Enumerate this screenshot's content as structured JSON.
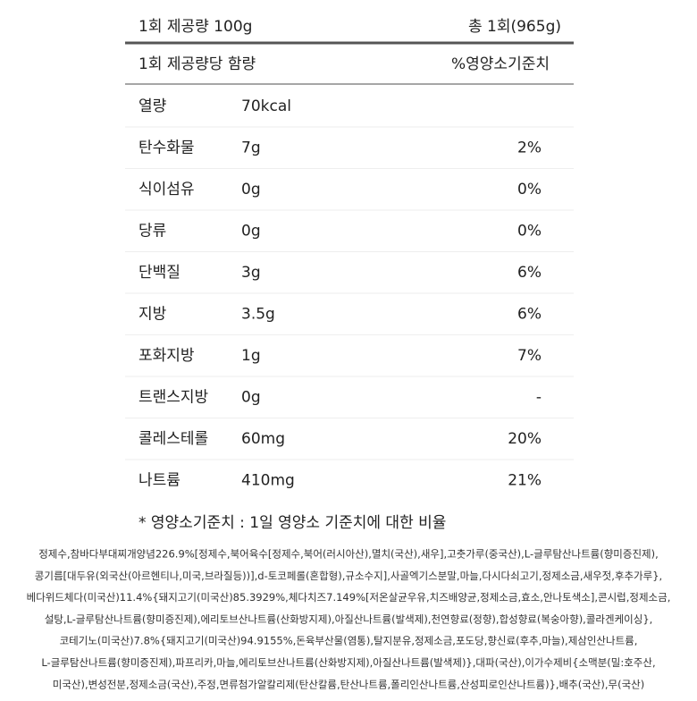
{
  "header": {
    "serving": "1회 제공량 100g",
    "total": "총 1회(965g)",
    "per_serving": "1회 제공량당 함량",
    "dv_label": "%영양소기준치"
  },
  "table": {
    "rows": [
      [
        "열량",
        "70kcal",
        ""
      ],
      [
        "탄수화물",
        "7g",
        "2%"
      ],
      [
        "식이섬유",
        "0g",
        "0%"
      ],
      [
        "당류",
        "0g",
        "0%"
      ],
      [
        "단백질",
        "3g",
        "6%"
      ],
      [
        "지방",
        "3.5g",
        "6%"
      ],
      [
        "포화지방",
        "1g",
        "7%"
      ],
      [
        "트랜스지방",
        "0g",
        "-"
      ],
      [
        "콜레스테롤",
        "60mg",
        "20%"
      ],
      [
        "나트륨",
        "410mg",
        "21%"
      ]
    ]
  },
  "footnote": "* 영양소기준치 : 1일 영양소 기준치에 대한 비율",
  "ingredients": {
    "lines": [
      "정제수,참바다부대찌개양념226.9%[정제수,북어육수[정제수,북어(러시아산),멸치(국산),새우],고춧가루(중국산),L-글루탐산나트륨(향미증진제),",
      "콩기름[대두유(외국산(아르헨티나,미국,브라질등))],d-토코페롤(혼합형),규소수지],사골엑기스분말,마늘,다시다쇠고기,정제소금,새우젓,후추가루},",
      "베다위드체다(미국산)11.4%{돼지고기(미국산)85.3929%,체다치즈7.149%[저온살균우유,치즈배양균,정제소금,효소,안나토색소],콘시럽,정제소금,",
      "설탕,L-글루탐산나트륨(향미증진제),에리토브산나트륨(산화방지제),아질산나트륨(발색제),천연향료(정향),합성향료(복숭아향),콜라겐케이싱},",
      "코테기노(미국산)7.8%{돼지고기(미국산)94.9155%,돈육부산물(염통),탈지분유,정제소금,포도당,향신료(후추,마늘),제삼인산나트륨,",
      "L-글루탐산나트륨(향미증진제),파프리카,마늘,에리토브산나트륨(산화방지제),아질산나트륨(발색제)},대파(국산),이가수제비{소맥분(밀:호주산,",
      "미국산),변성전분,정제소금(국산),주정,면류첨가알칼리제(탄산칼륨,탄산나트륨,폴리인산나트륨,산성피로인산나트륨)},배추(국산),무(국산)"
    ]
  }
}
